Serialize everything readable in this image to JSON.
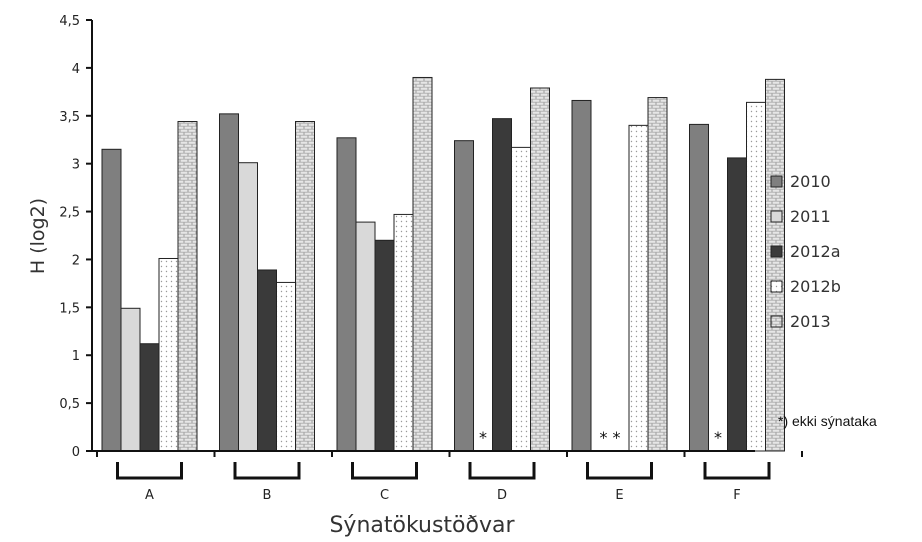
{
  "chart_data": {
    "type": "bar",
    "title": "",
    "xlabel": "Sýnatökustöðvar",
    "ylabel": "H (log2)",
    "ylim": [
      0,
      4.5
    ],
    "yticks": [
      "0",
      "0,5",
      "1",
      "1,5",
      "2",
      "2,5",
      "3",
      "3,5",
      "4",
      "4,5"
    ],
    "categories": [
      "A",
      "B",
      "C",
      "D",
      "E",
      "F"
    ],
    "series": [
      {
        "name": "2010",
        "color": "#7f7f7f",
        "pattern": "solid-gray",
        "values": [
          3.15,
          3.52,
          3.27,
          3.24,
          3.66,
          3.41
        ]
      },
      {
        "name": "2011",
        "color": "#d9d9d9",
        "pattern": "solid-light",
        "values": [
          1.49,
          3.01,
          2.39,
          null,
          null,
          null
        ]
      },
      {
        "name": "2012a",
        "color": "#3a3a3a",
        "pattern": "solid-dark",
        "values": [
          1.12,
          1.89,
          2.2,
          3.47,
          null,
          3.06
        ]
      },
      {
        "name": "2012b",
        "color": "#ffffff",
        "pattern": "dotted",
        "values": [
          2.01,
          1.76,
          2.47,
          3.17,
          3.4,
          3.64
        ]
      },
      {
        "name": "2013",
        "color": "#9a9a9a",
        "pattern": "brick",
        "values": [
          3.44,
          3.44,
          3.9,
          3.79,
          3.69,
          3.88
        ]
      }
    ],
    "missing_markers": [
      {
        "category": "D",
        "series": [
          "2011"
        ],
        "text": "*"
      },
      {
        "category": "E",
        "series": [
          "2011",
          "2012a"
        ],
        "text": "* *"
      },
      {
        "category": "F",
        "series": [
          "2011"
        ],
        "text": "*"
      }
    ],
    "note": "*) ekki sýnataka",
    "legend_position": "right",
    "grid": false
  }
}
